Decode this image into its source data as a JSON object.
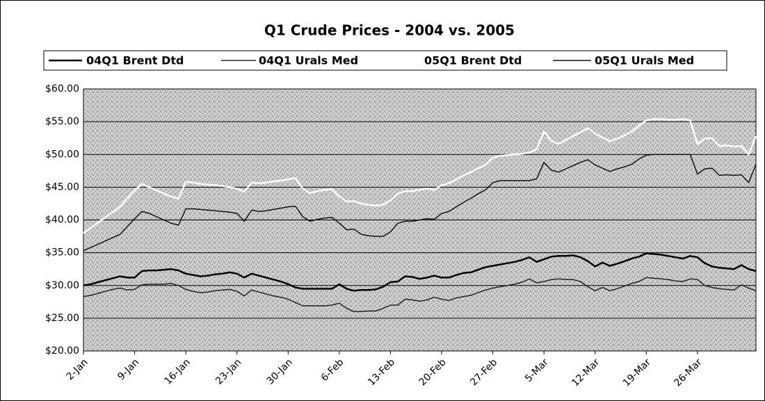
{
  "chart_data": {
    "type": "line",
    "title": "Q1 Crude Prices - 2004 vs. 2005",
    "categories": [
      "2-Jan",
      null,
      null,
      null,
      null,
      null,
      null,
      "9-Jan",
      null,
      null,
      null,
      null,
      null,
      null,
      "16-Jan",
      null,
      null,
      null,
      null,
      null,
      null,
      "23-Jan",
      null,
      null,
      null,
      null,
      null,
      null,
      "30-Jan",
      null,
      null,
      null,
      null,
      null,
      null,
      "6-Feb",
      null,
      null,
      null,
      null,
      null,
      null,
      "13-Feb",
      null,
      null,
      null,
      null,
      null,
      null,
      "20-Feb",
      null,
      null,
      null,
      null,
      null,
      null,
      "27-Feb",
      null,
      null,
      null,
      null,
      null,
      null,
      "5-Mar",
      null,
      null,
      null,
      null,
      null,
      null,
      "12-Mar",
      null,
      null,
      null,
      null,
      null,
      null,
      "19-Mar",
      null,
      null,
      null,
      null,
      null,
      null,
      "26-Mar",
      null,
      null,
      null,
      null,
      null,
      null,
      null,
      null
    ],
    "series": [
      {
        "name": "04Q1 Brent Dtd",
        "color": "#000000",
        "values": [
          30,
          30.2,
          30.5,
          30.8,
          31.1,
          31.4,
          31.2,
          31.2,
          32.2,
          32.3,
          32.3,
          32.4,
          32.5,
          32.3,
          31.8,
          31.6,
          31.4,
          31.5,
          31.7,
          31.8,
          32,
          31.8,
          31.2,
          31.8,
          31.5,
          31.2,
          30.9,
          30.6,
          30.2,
          29.7,
          29.5,
          29.5,
          29.5,
          29.5,
          29.5,
          30.2,
          29.5,
          29.2,
          29.3,
          29.3,
          29.4,
          29.8,
          30.5,
          30.6,
          31.4,
          31.3,
          31,
          31.2,
          31.5,
          31.2,
          31.2,
          31.6,
          31.9,
          32,
          32.4,
          32.8,
          33,
          33.2,
          33.4,
          33.6,
          33.9,
          34.3,
          33.6,
          34,
          34.4,
          34.5,
          34.5,
          34.6,
          34.3,
          33.7,
          32.9,
          33.5,
          33,
          33.3,
          33.7,
          34.1,
          34.4,
          34.9,
          34.8,
          34.7,
          34.5,
          34.3,
          34.1,
          34.5,
          34.3,
          33.4,
          32.9,
          32.7,
          32.6,
          32.5,
          33.1,
          32.5,
          32.2
        ]
      },
      {
        "name": "04Q1 Urals Med",
        "color": "#222222",
        "values": [
          28.3,
          28.5,
          28.8,
          29.1,
          29.4,
          29.6,
          29.3,
          29.4,
          30.1,
          30.2,
          30.2,
          30.2,
          30.3,
          30,
          29.4,
          29.1,
          28.9,
          29,
          29.2,
          29.3,
          29.4,
          29.1,
          28.4,
          29.3,
          29,
          28.7,
          28.4,
          28.2,
          27.9,
          27.4,
          26.9,
          26.9,
          26.9,
          26.9,
          27,
          27.3,
          26.5,
          26,
          26,
          26.1,
          26.1,
          26.5,
          27,
          27,
          27.9,
          27.8,
          27.6,
          27.8,
          28.2,
          27.9,
          27.7,
          28.1,
          28.3,
          28.5,
          28.9,
          29.3,
          29.6,
          29.8,
          30,
          30.2,
          30.5,
          31,
          30.4,
          30.6,
          30.9,
          31,
          30.9,
          30.9,
          30.6,
          29.8,
          29.2,
          29.7,
          29.2,
          29.5,
          29.9,
          30.3,
          30.6,
          31.2,
          31.1,
          31,
          30.9,
          30.7,
          30.6,
          31,
          30.9,
          30,
          29.7,
          29.5,
          29.4,
          29.3,
          30.1,
          29.6,
          29.2
        ]
      },
      {
        "name": "05Q1 Brent Dtd",
        "color": "#ffffff",
        "values": [
          38,
          38.8,
          39.6,
          40.4,
          41.2,
          42,
          43.3,
          44.5,
          45.5,
          45,
          44.5,
          44,
          43.6,
          43.2,
          45.8,
          45.7,
          45.5,
          45.4,
          45.3,
          45.2,
          45,
          44.8,
          44.3,
          45.7,
          45.6,
          45.7,
          45.9,
          46,
          46.2,
          46.4,
          44.8,
          44.1,
          44.4,
          44.6,
          44.7,
          43.6,
          42.8,
          42.9,
          42.5,
          42.3,
          42.2,
          42.3,
          43,
          44,
          44.4,
          44.4,
          44.6,
          44.8,
          44.6,
          45.3,
          45.6,
          46.2,
          46.8,
          47.3,
          47.9,
          48.4,
          49.5,
          49.8,
          49.9,
          50,
          50.1,
          50.3,
          50.8,
          53.5,
          52.1,
          51.6,
          52.2,
          52.8,
          53.4,
          54,
          53.2,
          52.6,
          52,
          52.4,
          52.9,
          53.5,
          54.4,
          55.2,
          55.4,
          55.4,
          55.3,
          55.3,
          55.4,
          55.2,
          51.6,
          52.4,
          52.5,
          51.3,
          51.4,
          51.2,
          51.3,
          50,
          52.8
        ]
      },
      {
        "name": "05Q1 Urals Med",
        "color": "#111111",
        "values": [
          35.3,
          35.8,
          36.3,
          36.8,
          37.3,
          37.8,
          39,
          40.2,
          41.3,
          41,
          40.5,
          40,
          39.5,
          39.2,
          41.7,
          41.7,
          41.6,
          41.5,
          41.4,
          41.3,
          41.2,
          41,
          39.8,
          41.5,
          41.3,
          41.4,
          41.6,
          41.8,
          42,
          42.1,
          40.5,
          39.8,
          40.1,
          40.3,
          40.4,
          39.5,
          38.5,
          38.6,
          37.8,
          37.6,
          37.5,
          37.5,
          38.2,
          39.5,
          39.8,
          39.8,
          40,
          40.2,
          40.1,
          41,
          41.3,
          42,
          42.7,
          43.3,
          44,
          44.6,
          45.7,
          46,
          46,
          46,
          46,
          46,
          46.3,
          48.8,
          47.6,
          47.3,
          47.8,
          48.3,
          48.8,
          49.2,
          48.4,
          47.9,
          47.4,
          47.8,
          48.1,
          48.5,
          49.3,
          49.9,
          50,
          50,
          50,
          50,
          50,
          50,
          47,
          47.8,
          47.9,
          46.8,
          46.9,
          46.8,
          46.9,
          45.7,
          48.5
        ]
      }
    ],
    "ylim": [
      20,
      60
    ],
    "yticks": [
      {
        "value": 20,
        "label": "$20.00"
      },
      {
        "value": 25,
        "label": "$25.00"
      },
      {
        "value": 30,
        "label": "$30.00"
      },
      {
        "value": 35,
        "label": "$35.00"
      },
      {
        "value": 40,
        "label": "$40.00"
      },
      {
        "value": 45,
        "label": "$45.00"
      },
      {
        "value": 50,
        "label": "$50.00"
      },
      {
        "value": 55,
        "label": "$55.00"
      },
      {
        "value": 60,
        "label": "$60.00"
      }
    ],
    "grid": true
  }
}
